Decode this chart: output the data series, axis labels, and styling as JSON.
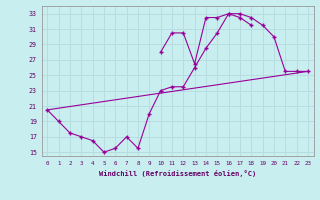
{
  "xlabel": "Windchill (Refroidissement éolien,°C)",
  "bg_color": "#c8eef0",
  "line_color": "#990099",
  "grid_color": "#b8dde0",
  "x_hours": [
    0,
    1,
    2,
    3,
    4,
    5,
    6,
    7,
    8,
    9,
    10,
    11,
    12,
    13,
    14,
    15,
    16,
    17,
    18,
    19,
    20,
    21,
    22,
    23
  ],
  "series_jagged": [
    20.5,
    19.0,
    17.5,
    17.0,
    16.5,
    15.0,
    15.5,
    17.0,
    15.5,
    20.0,
    23.0,
    23.5,
    23.5,
    26.0,
    28.5,
    30.5,
    33.0,
    33.0,
    32.5,
    31.5,
    30.0,
    25.5,
    25.5,
    25.5
  ],
  "series_upper": [
    null,
    null,
    null,
    null,
    null,
    null,
    null,
    null,
    null,
    null,
    28.0,
    30.5,
    30.5,
    26.5,
    32.5,
    32.5,
    33.0,
    32.5,
    31.5,
    null,
    null,
    null,
    null,
    null
  ],
  "series_diag": [
    20.5,
    null,
    null,
    null,
    null,
    null,
    null,
    null,
    null,
    null,
    null,
    null,
    null,
    null,
    null,
    null,
    null,
    null,
    null,
    null,
    null,
    null,
    null,
    25.5
  ],
  "ylim": [
    14.5,
    34
  ],
  "xlim": [
    -0.5,
    23.5
  ],
  "yticks": [
    15,
    17,
    19,
    21,
    23,
    25,
    27,
    29,
    31,
    33
  ],
  "xticks": [
    0,
    1,
    2,
    3,
    4,
    5,
    6,
    7,
    8,
    9,
    10,
    11,
    12,
    13,
    14,
    15,
    16,
    17,
    18,
    19,
    20,
    21,
    22,
    23
  ]
}
